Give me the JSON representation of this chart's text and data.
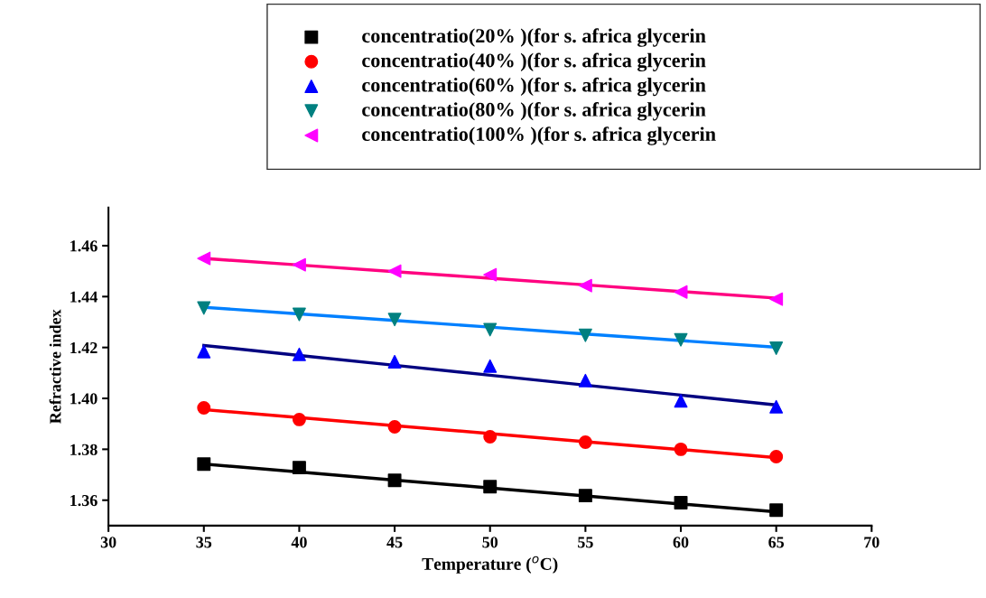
{
  "chart_data": {
    "type": "scatter",
    "xlabel": "Temperature ($^{o}$C)",
    "ylabel": "Refractive index",
    "x": [
      35,
      40,
      45,
      50,
      55,
      60,
      65
    ],
    "xlim": [
      30,
      70
    ],
    "xticks": [
      30,
      35,
      40,
      45,
      50,
      55,
      60,
      65,
      70
    ],
    "ylim": [
      1.35,
      1.475
    ],
    "yticks": [
      1.36,
      1.38,
      {
        "value": 1.4,
        "label": "1.40"
      },
      1.42,
      1.44,
      1.46
    ],
    "grid": false,
    "legend": "top right",
    "series": [
      {
        "name": "concentratio(20% )(for s. africa glycerin",
        "color": "#000000",
        "marker": "square",
        "values": [
          1.3742,
          1.3728,
          1.3678,
          1.3653,
          1.3618,
          1.359,
          1.3561
        ]
      },
      {
        "name": "concentratio(40% )(for s. africa glycerin",
        "color": "#ff0000",
        "marker": "circle",
        "values": [
          1.3963,
          1.3917,
          1.3888,
          1.3849,
          1.3828,
          1.38,
          1.3771
        ]
      },
      {
        "name": "concentratio(60% )(for s. africa glycerin",
        "color": "#0000ff",
        "marker": "triangle",
        "values": [
          1.4184,
          1.4173,
          1.4144,
          1.4127,
          1.407,
          1.399,
          1.3967
        ]
      },
      {
        "name": "concentratio(80% )(for s. africa glycerin",
        "color": "#008080",
        "marker": "triangle_down",
        "values": [
          1.4355,
          1.433,
          1.431,
          1.427,
          1.4248,
          1.423,
          1.4197
        ]
      },
      {
        "name": "concentratio(100% )(for s. africa glycerin",
        "color": "#ff00ff",
        "marker": "triangle_left",
        "values": [
          1.455,
          1.4525,
          1.45,
          1.4486,
          1.4443,
          1.4418,
          1.439
        ]
      },
      {
        "type": "line",
        "color": "#000000",
        "values": [
          1.3742,
          1.3711,
          1.3679,
          1.3648,
          1.3617,
          1.3585,
          1.3554
        ]
      },
      {
        "type": "line",
        "color": "#ff0000",
        "values": [
          1.3956,
          1.3925,
          1.3893,
          1.3862,
          1.383,
          1.3799,
          1.3767
        ]
      },
      {
        "type": "line",
        "color": "#000080",
        "values": [
          1.4208,
          1.4169,
          1.413,
          1.4091,
          1.4052,
          1.4013,
          1.3974
        ]
      },
      {
        "type": "line",
        "color": "#0080ff",
        "values": [
          1.4358,
          1.4332,
          1.4306,
          1.428,
          1.4253,
          1.4227,
          1.4201
        ]
      },
      {
        "type": "line",
        "color": "#ff0080",
        "values": [
          1.455,
          1.4524,
          1.4498,
          1.4472,
          1.4446,
          1.442,
          1.4394
        ]
      }
    ]
  }
}
